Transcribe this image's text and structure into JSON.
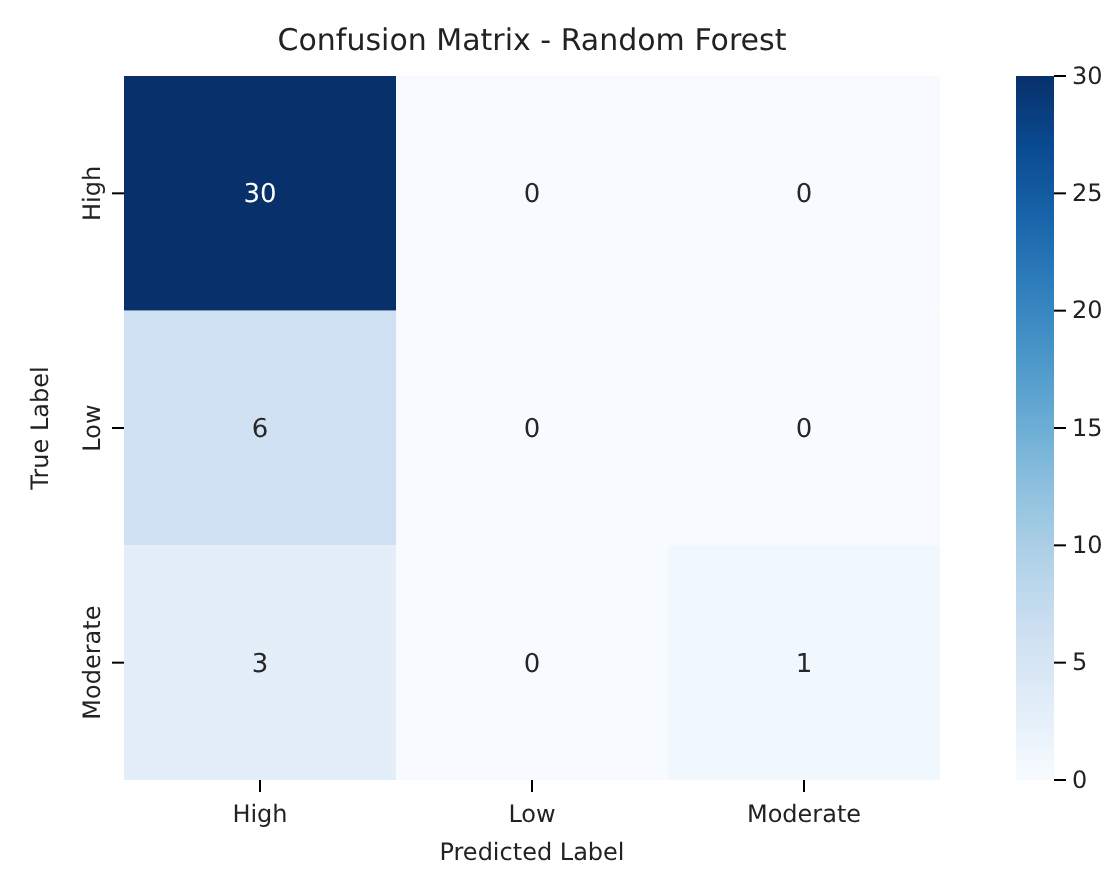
{
  "chart_data": {
    "type": "heatmap",
    "title": "Confusion Matrix - Random Forest",
    "xlabel": "Predicted Label",
    "ylabel": "True Label",
    "categories": [
      "High",
      "Low",
      "Moderate"
    ],
    "y_categories": [
      "High",
      "Low",
      "Moderate"
    ],
    "cells": [
      [
        30,
        0,
        0
      ],
      [
        6,
        0,
        0
      ],
      [
        3,
        0,
        1
      ]
    ],
    "clim": [
      0,
      30
    ],
    "cticks": [
      0,
      5,
      10,
      15,
      20,
      25,
      30
    ],
    "data_labels": true
  }
}
